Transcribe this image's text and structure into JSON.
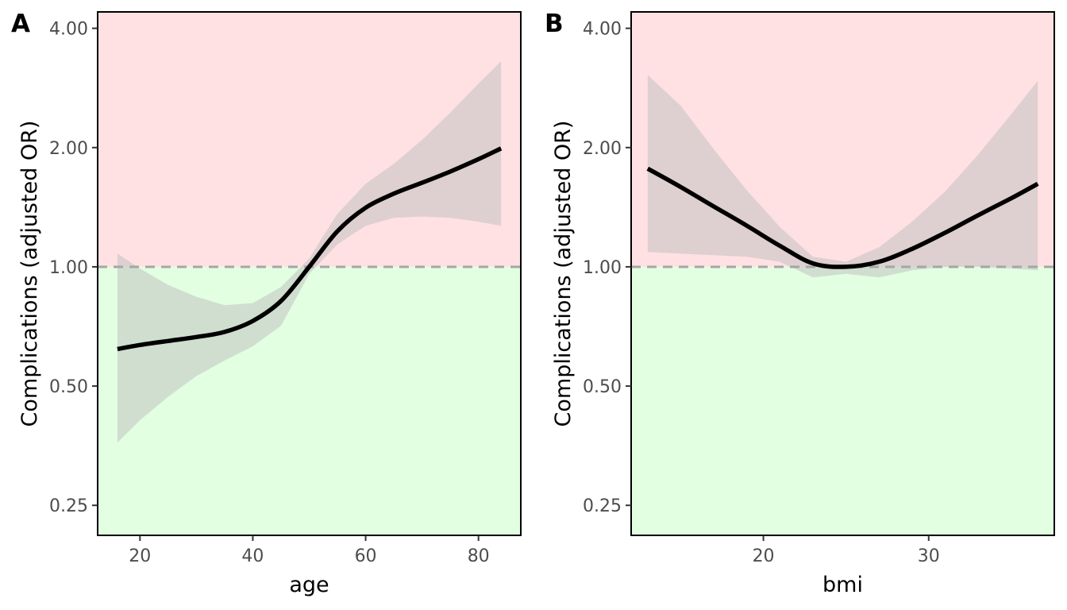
{
  "colors": {
    "risk_region": "#ffe1e3",
    "protective_region": "#e2ffe2",
    "ribbon": "#bdbdbd",
    "line": "#000000",
    "reference_line": "#a6a6a6"
  },
  "chart_data": [
    {
      "type": "line",
      "panel_label": "A",
      "xlabel": "age",
      "ylabel": "Complications (adjusted OR)",
      "y_scale": "log",
      "reference_line": 1.0,
      "xlim": [
        12.5,
        87.5
      ],
      "ylim": [
        0.21,
        4.4
      ],
      "x_ticks": [
        20,
        40,
        60,
        80
      ],
      "x_tick_labels": [
        "20",
        "40",
        "60",
        "80"
      ],
      "y_ticks": [
        0.25,
        0.5,
        1.0,
        2.0,
        4.0
      ],
      "y_tick_labels": [
        "0.25",
        "0.50",
        "1.00",
        "2.00",
        "4.00"
      ],
      "x": [
        16,
        20,
        25,
        30,
        35,
        40,
        45,
        50,
        55,
        60,
        65,
        70,
        75,
        80,
        84
      ],
      "fit": [
        0.62,
        0.635,
        0.65,
        0.665,
        0.685,
        0.73,
        0.82,
        1.0,
        1.23,
        1.41,
        1.53,
        1.63,
        1.74,
        1.87,
        1.99
      ],
      "lower": [
        0.36,
        0.41,
        0.47,
        0.53,
        0.58,
        0.63,
        0.71,
        0.96,
        1.14,
        1.27,
        1.33,
        1.34,
        1.33,
        1.3,
        1.27
      ],
      "upper": [
        1.08,
        0.99,
        0.9,
        0.84,
        0.8,
        0.81,
        0.89,
        1.05,
        1.36,
        1.62,
        1.82,
        2.09,
        2.45,
        2.9,
        3.3
      ]
    },
    {
      "type": "line",
      "panel_label": "B",
      "xlabel": "bmi",
      "ylabel": "Complications (adjusted OR)",
      "y_scale": "log",
      "reference_line": 1.0,
      "xlim": [
        12.0,
        37.6
      ],
      "ylim": [
        0.21,
        4.4
      ],
      "x_ticks": [
        20,
        30
      ],
      "x_tick_labels": [
        "20",
        "30"
      ],
      "y_ticks": [
        0.25,
        0.5,
        1.0,
        2.0,
        4.0
      ],
      "y_tick_labels": [
        "0.25",
        "0.50",
        "1.00",
        "2.00",
        "4.00"
      ],
      "x": [
        13.0,
        15.0,
        17.0,
        19.0,
        21.0,
        23.0,
        25.0,
        27.0,
        29.0,
        31.0,
        33.0,
        35.0,
        36.6
      ],
      "fit": [
        1.77,
        1.59,
        1.42,
        1.27,
        1.13,
        1.02,
        1.0,
        1.03,
        1.11,
        1.22,
        1.35,
        1.49,
        1.62
      ],
      "lower": [
        1.09,
        1.08,
        1.07,
        1.06,
        1.03,
        0.94,
        0.96,
        0.94,
        0.98,
        1.0,
        1.0,
        0.99,
        0.98
      ],
      "upper": [
        3.05,
        2.55,
        1.98,
        1.56,
        1.26,
        1.06,
        1.03,
        1.12,
        1.3,
        1.55,
        1.92,
        2.43,
        2.95
      ]
    }
  ]
}
